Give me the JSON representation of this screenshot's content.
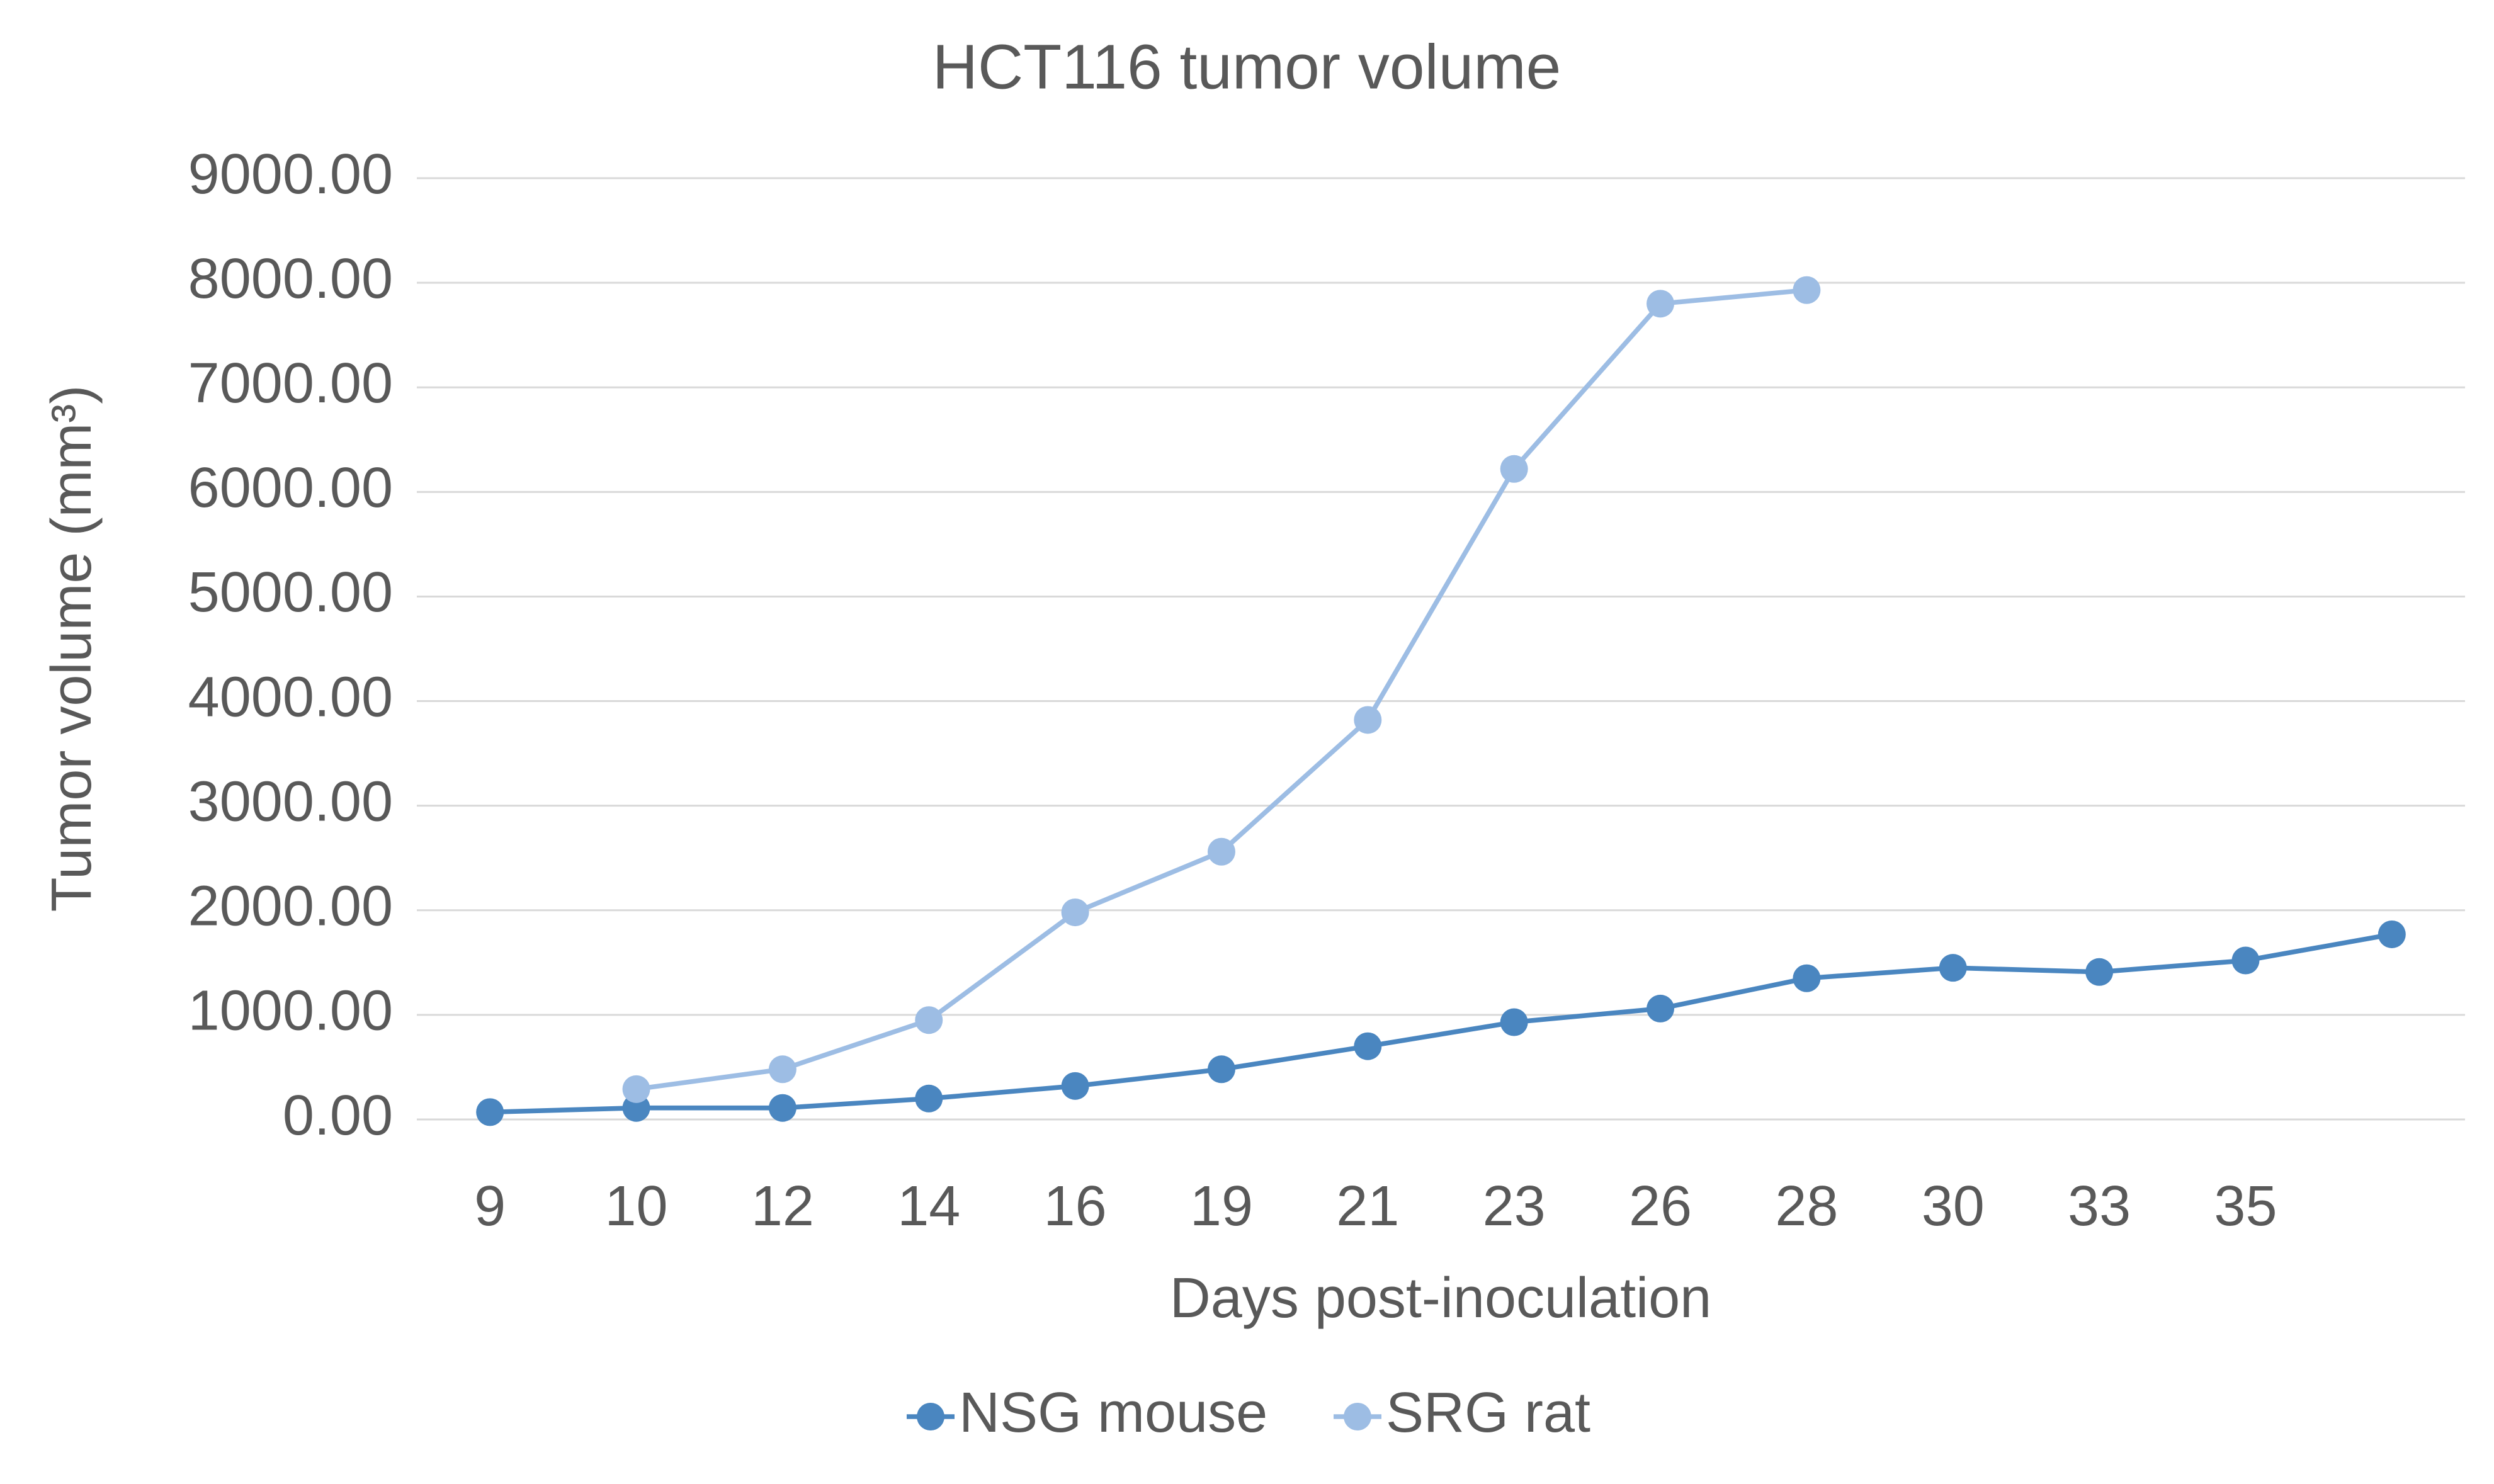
{
  "chart_data": {
    "type": "line",
    "title": "HCT116 tumor volume",
    "x_label": "Days post-inoculation",
    "y_label": "Tumor volume (mm³)",
    "categories": [
      "9",
      "10",
      "12",
      "14",
      "16",
      "19",
      "21",
      "23",
      "26",
      "28",
      "30",
      "33",
      "35",
      null
    ],
    "series": [
      {
        "name": "NSG mouse",
        "color": "#4a86c0",
        "values": [
          70,
          110,
          110,
          200,
          320,
          480,
          700,
          930,
          1060,
          1350,
          1450,
          1410,
          1520,
          1770
        ]
      },
      {
        "name": "SRG rat",
        "color": "#9dbde4",
        "values": [
          null,
          290,
          480,
          950,
          1980,
          2560,
          3820,
          6220,
          7800,
          7930,
          null,
          null,
          null,
          null
        ]
      }
    ],
    "ylim": [
      0,
      9000
    ],
    "yticks": [
      {
        "value": 0,
        "label": "0.00"
      },
      {
        "value": 1000,
        "label": "1000.00"
      },
      {
        "value": 2000,
        "label": "2000.00"
      },
      {
        "value": 3000,
        "label": "3000.00"
      },
      {
        "value": 4000,
        "label": "4000.00"
      },
      {
        "value": 5000,
        "label": "5000.00"
      },
      {
        "value": 6000,
        "label": "6000.00"
      },
      {
        "value": 7000,
        "label": "7000.00"
      },
      {
        "value": 8000,
        "label": "8000.00"
      },
      {
        "value": 9000,
        "label": "9000.00"
      }
    ],
    "grid": true,
    "legend": "bottom"
  }
}
